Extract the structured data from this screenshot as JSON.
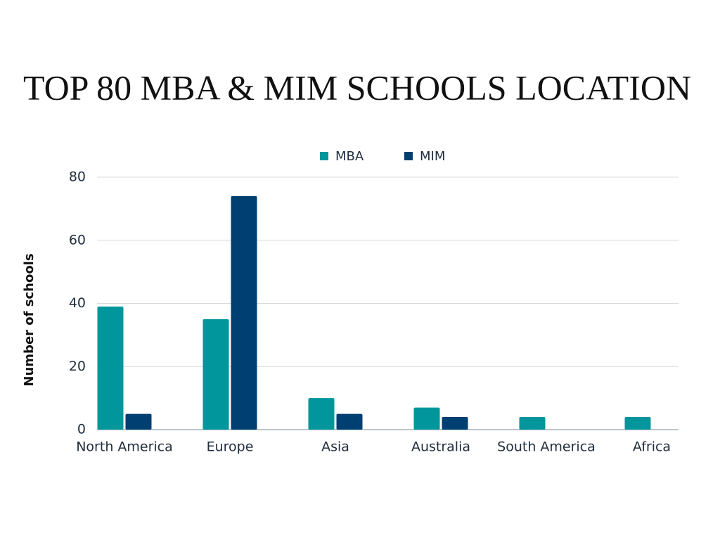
{
  "chart_data": {
    "type": "bar",
    "title": "TOP 80 MBA & MIM SCHOOLS LOCATION",
    "y_label": "Number of schools",
    "categories": [
      "North America",
      "Europe",
      "Asia",
      "Australia",
      "South America",
      "Africa"
    ],
    "series": [
      {
        "name": "MBA",
        "color": "#00969b",
        "values": [
          39,
          35,
          10,
          7,
          4,
          4
        ]
      },
      {
        "name": "MIM",
        "color": "#003f72",
        "values": [
          5,
          74,
          5,
          4,
          0,
          0
        ]
      }
    ],
    "ylim": [
      0,
      80
    ],
    "yticks": [
      0,
      20,
      40,
      60,
      80
    ],
    "grid": true,
    "legend": "top"
  }
}
